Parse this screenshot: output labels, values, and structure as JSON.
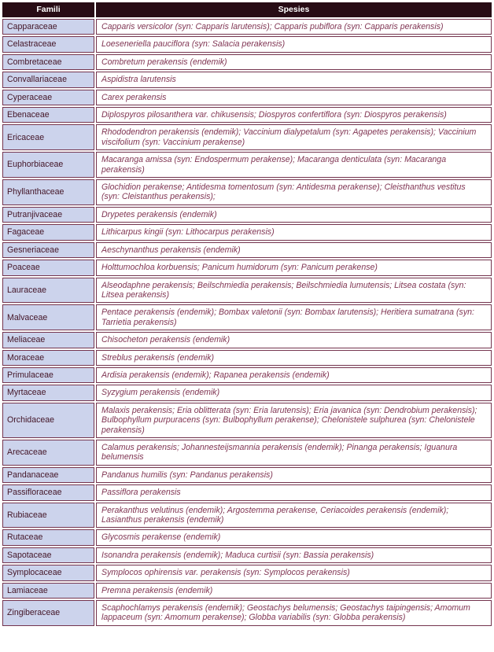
{
  "colors": {
    "header_bg": "#280c15",
    "header_text": "#ffffff",
    "border": "#74344e",
    "family_cell_bg": "#ccd3ec",
    "family_text": "#421426",
    "species_text": "#803553",
    "gap_bg": "#ffffff"
  },
  "table": {
    "headers": {
      "family": "Famili",
      "species": "Spesies"
    },
    "rows": [
      {
        "family": "Capparaceae",
        "species": "Capparis versicolor (syn: Capparis larutensis); Capparis pubiflora (syn: Capparis perakensis)"
      },
      {
        "family": "Celastraceae",
        "species": "Loeseneriella pauciflora (syn: Salacia perakensis)"
      },
      {
        "family": "Combretaceae",
        "species": "Combretum perakensis (endemik)"
      },
      {
        "family": "Convallariaceae",
        "species": "Aspidistra larutensis"
      },
      {
        "family": "Cyperaceae",
        "species": "Carex perakensis"
      },
      {
        "family": "Ebenaceae",
        "species": "Diplospyros pilosanthera var. chikusensis; Diospyros confertiflora (syn: Diospyros perakensis)"
      },
      {
        "family": "Ericaceae",
        "species": "Rhododendron perakensis (endemik); Vaccinium dialypetalum (syn: Agapetes perakensis); Vaccinium viscifolium (syn: Vaccinium perakense)"
      },
      {
        "family": "Euphorbiaceae",
        "species": "Macaranga amissa (syn: Endospermum perakense); Macaranga denticulata (syn: Macaranga perakensis)"
      },
      {
        "family": "Phyllanthaceae",
        "species": "Glochidion perakense; Antidesma tomentosum (syn: Antidesma perakense); Cleisthanthus vestitus (syn: Cleistanthus perakensis);"
      },
      {
        "family": "Putranjivaceae",
        "species": "Drypetes perakensis (endemik)"
      },
      {
        "family": "Fagaceae",
        "species": "Lithicarpus kingii (syn: Lithocarpus perakensis)"
      },
      {
        "family": "Gesneriaceae",
        "species": "Aeschynanthus perakensis (endemik)"
      },
      {
        "family": "Poaceae",
        "species": "Holttumochloa korbuensis; Panicum humidorum (syn: Panicum perakense)"
      },
      {
        "family": "Lauraceae",
        "species": "Alseodaphne perakensis; Beilschmiedia perakensis; Beilschmiedia lumutensis; Litsea costata (syn: Litsea perakensis)"
      },
      {
        "family": "Malvaceae",
        "species": "Pentace perakensis (endemik); Bombax valetonii (syn: Bombax larutensis); Heritiera sumatrana (syn: Tarrietia perakensis)"
      },
      {
        "family": "Meliaceae",
        "species": "Chisocheton perakensis (endemik)"
      },
      {
        "family": "Moraceae",
        "species": "Streblus perakensis (endemik)"
      },
      {
        "family": "Primulaceae",
        "species": "Ardisia perakensis (endemik); Rapanea perakensis (endemik)"
      },
      {
        "family": "Myrtaceae",
        "species": "Syzygium perakensis (endemik)"
      },
      {
        "family": "Orchidaceae",
        "species": "Malaxis perakensis; Eria oblitterata (syn: Eria larutensis); Eria javanica (syn: Dendrobium perakensis); Bulbophyllum purpuracens (syn: Bulbophyllum perakense); Chelonistele sulphurea (syn: Chelonistele perakensis)"
      },
      {
        "family": "Arecaceae",
        "species": "Calamus perakensis; Johannesteijsmannia perakensis (endemik); Pinanga perakensis; Iguanura belumensis"
      },
      {
        "family": "Pandanaceae",
        "species": "Pandanus humilis (syn: Pandanus perakensis)"
      },
      {
        "family": "Passifloraceae",
        "species": "Passiflora perakensis"
      },
      {
        "family": "Rubiaceae",
        "species": "Perakanthus velutinus (endemik); Argostemma perakense, Ceriacoides perakensis (endemik); Lasianthus perakensis (endemik)"
      },
      {
        "family": "Rutaceae",
        "species": "Glycosmis perakense (endemik)"
      },
      {
        "family": "Sapotaceae",
        "species": "Isonandra perakensis (endemik); Maduca curtisii (syn: Bassia perakensis)"
      },
      {
        "family": "Symplocaceae",
        "species": "Symplocos ophirensis var. perakensis (syn: Symplocos perakensis)"
      },
      {
        "family": "Lamiaceae",
        "species": "Premna perakensis (endemik)"
      },
      {
        "family": "Zingiberaceae",
        "species": "Scaphochlamys perakensis (endemik); Geostachys belumensis; Geostachys taipingensis; Amomum lappaceum (syn: Amomum perakense); Globba variabilis (syn: Globba perakensis)"
      }
    ]
  }
}
